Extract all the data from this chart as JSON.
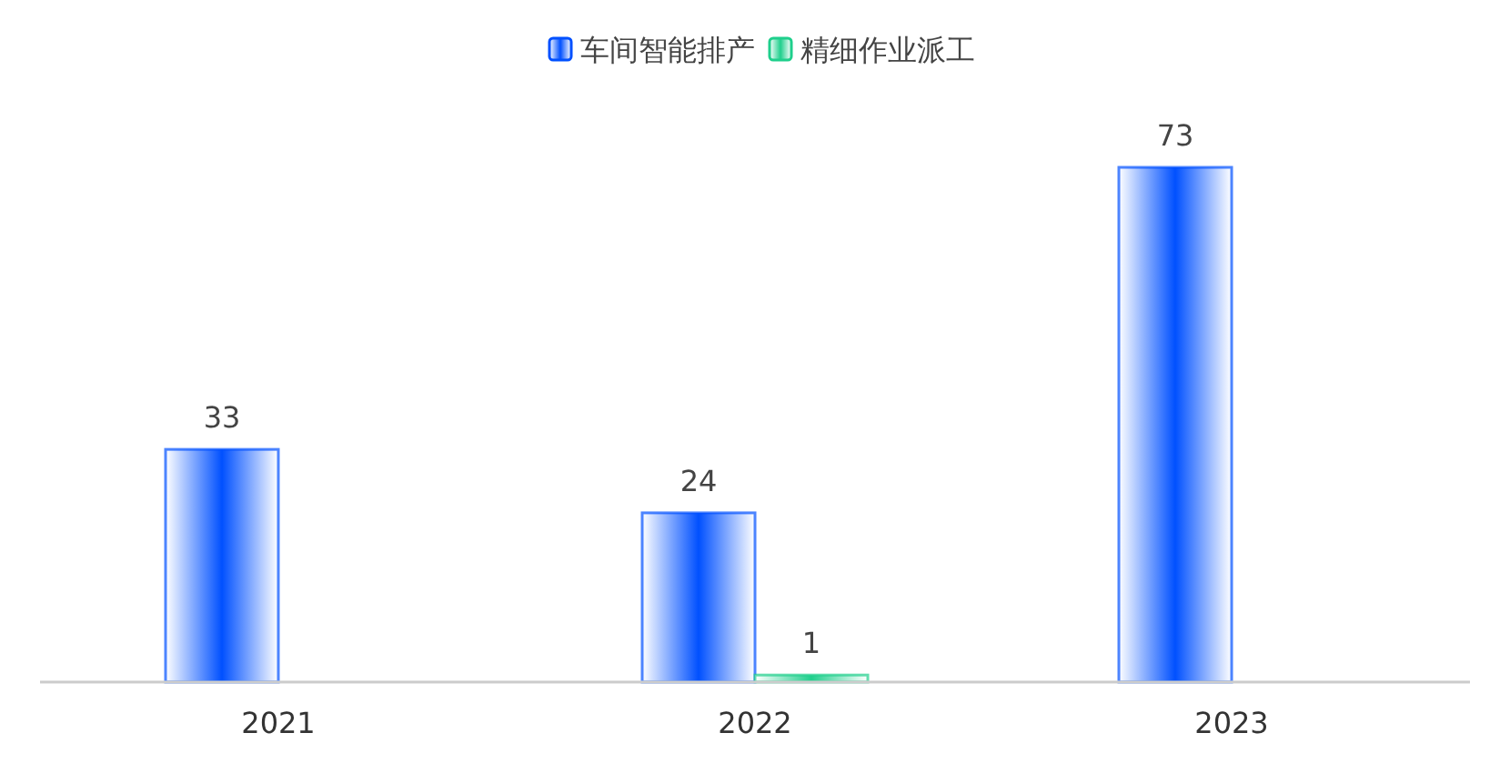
{
  "chart_data": {
    "type": "bar",
    "categories": [
      "2021",
      "2022",
      "2023"
    ],
    "series": [
      {
        "name": "车间智能排产",
        "color": "#0050ff",
        "values": [
          33,
          24,
          73
        ]
      },
      {
        "name": "精细作业派工",
        "color": "#1fcf8c",
        "values": [
          null,
          1,
          null
        ]
      }
    ],
    "data_labels": true,
    "legend": "top"
  }
}
